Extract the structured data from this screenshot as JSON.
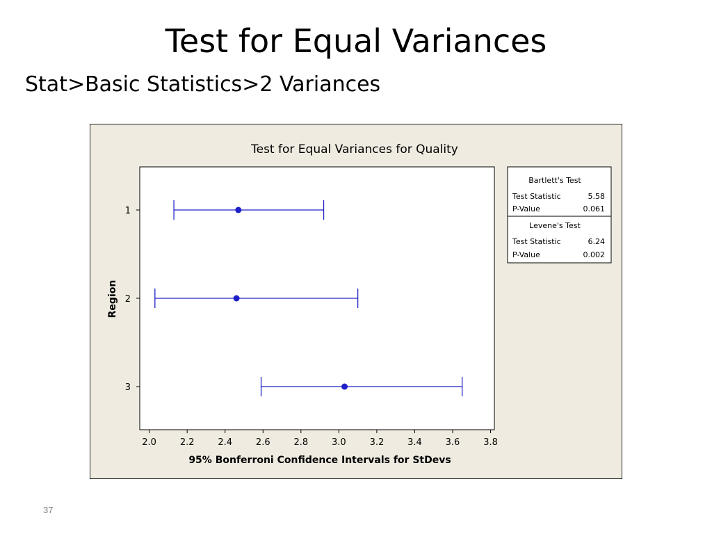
{
  "slide": {
    "title": "Test for Equal Variances",
    "subtitle": "Stat>Basic Statistics>2 Variances",
    "page_number": "37"
  },
  "chart_data": {
    "type": "scatter",
    "title": "Test for Equal Variances for Quality",
    "xlabel": "95% Bonferroni Confidence Intervals for StDevs",
    "ylabel": "Region",
    "xlim": [
      1.95,
      3.82
    ],
    "x_ticks": [
      "2.0",
      "2.2",
      "2.4",
      "2.6",
      "2.8",
      "3.0",
      "3.2",
      "3.4",
      "3.6",
      "3.8"
    ],
    "categories": [
      "1",
      "2",
      "3"
    ],
    "intervals": [
      {
        "region": "1",
        "lower": 2.13,
        "estimate": 2.47,
        "upper": 2.92
      },
      {
        "region": "2",
        "lower": 2.03,
        "estimate": 2.46,
        "upper": 3.1
      },
      {
        "region": "3",
        "lower": 2.59,
        "estimate": 3.03,
        "upper": 3.65
      }
    ],
    "series_color": "#2020c8",
    "grid": false
  },
  "bartlett": {
    "heading": "Bartlett's Test",
    "stat_label": "Test Statistic",
    "stat_value": "5.58",
    "p_label": "P-Value",
    "p_value": "0.061"
  },
  "levene": {
    "heading": "Levene's Test",
    "stat_label": "Test Statistic",
    "stat_value": "6.24",
    "p_label": "P-Value",
    "p_value": "0.002"
  }
}
